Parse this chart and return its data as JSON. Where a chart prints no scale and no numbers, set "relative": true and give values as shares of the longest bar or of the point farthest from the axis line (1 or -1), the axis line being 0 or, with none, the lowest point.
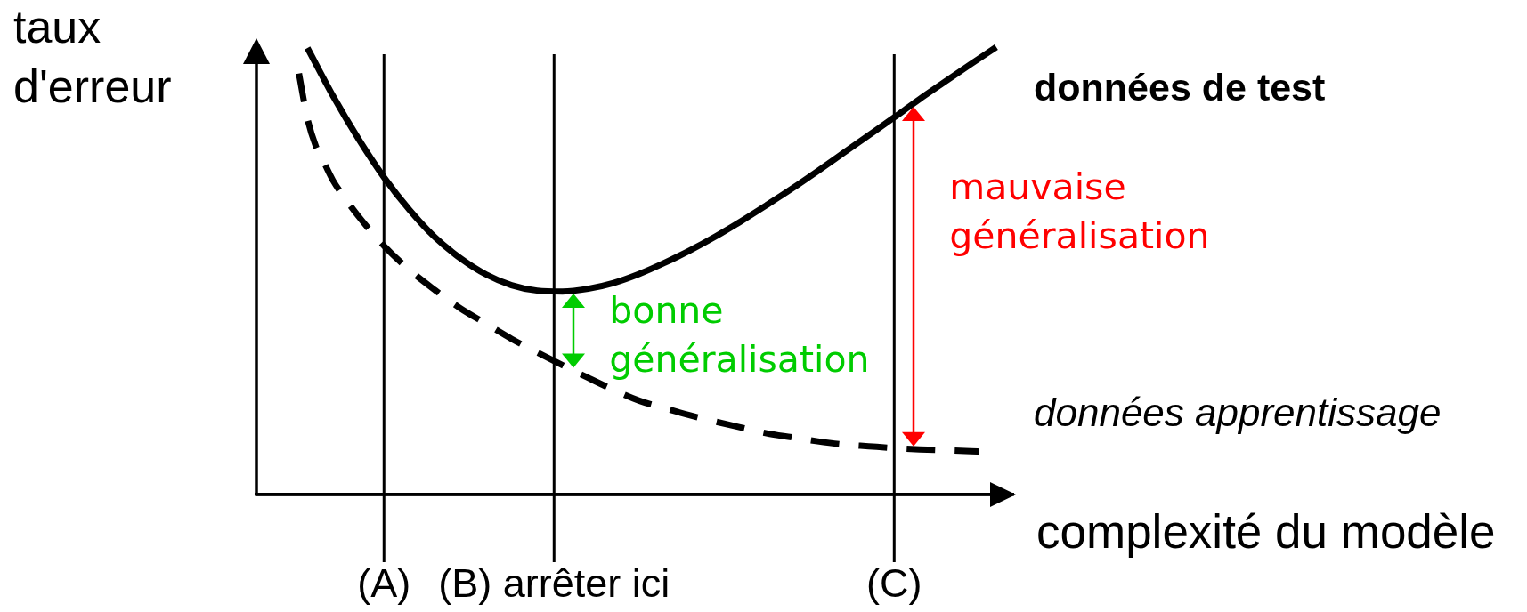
{
  "chart_data": {
    "type": "line",
    "relative": true,
    "xlabel": "complexité du modèle",
    "ylabel": "taux d'erreur",
    "categories": [
      null,
      null,
      null,
      null,
      null,
      null,
      null,
      null,
      null,
      null,
      null,
      null,
      null,
      null,
      null,
      "(A)",
      null,
      null,
      null,
      null,
      null,
      null,
      null,
      null,
      null,
      null,
      null,
      null,
      null,
      null,
      null,
      null,
      null,
      null,
      null,
      "(B) arrêter ici",
      null,
      null,
      null,
      null,
      null,
      null,
      null,
      null,
      null,
      null,
      null,
      null,
      null,
      null,
      null,
      null,
      null,
      null,
      null,
      null,
      null,
      null,
      null,
      null,
      null,
      null,
      null,
      null,
      null,
      null,
      null,
      null,
      null,
      null,
      null,
      null,
      null,
      null,
      null,
      "(C)",
      null,
      null,
      null,
      null,
      null,
      null,
      null,
      null,
      null,
      null,
      null,
      null,
      null,
      null
    ],
    "series": [
      {
        "name": "données de test",
        "color": "#000000",
        "line_style": "solid",
        "values": [
          null,
          null,
          null,
          null,
          null,
          null,
          0.998,
          null,
          null,
          0.891,
          null,
          null,
          0.795,
          null,
          null,
          0.709,
          null,
          null,
          0.636,
          null,
          null,
          0.575,
          null,
          null,
          0.528,
          null,
          null,
          0.492,
          null,
          null,
          0.468,
          null,
          null,
          0.456,
          null,
          null,
          0.454,
          null,
          null,
          0.46,
          null,
          null,
          0.473,
          null,
          null,
          0.493,
          null,
          null,
          0.518,
          null,
          null,
          0.546,
          null,
          null,
          0.577,
          null,
          null,
          0.611,
          null,
          null,
          0.647,
          null,
          null,
          0.684,
          null,
          null,
          0.723,
          null,
          null,
          0.763,
          null,
          null,
          0.803,
          null,
          null,
          0.843,
          null,
          null,
          0.884,
          null,
          null,
          0.923,
          null,
          null,
          0.962,
          null,
          null,
          1.0,
          null,
          null
        ]
      },
      {
        "name": "données apprentissage",
        "color": "#000000",
        "line_style": "dashed",
        "values": [
          null,
          null,
          null,
          null,
          null,
          0.941,
          0.84,
          0.778,
          0.74,
          0.702,
          0.673,
          null,
          0.622,
          null,
          null,
          0.556,
          null,
          null,
          0.502,
          null,
          null,
          0.457,
          null,
          null,
          0.416,
          null,
          null,
          0.382,
          null,
          null,
          0.348,
          null,
          null,
          0.318,
          null,
          null,
          0.289,
          null,
          null,
          0.261,
          null,
          null,
          0.234,
          null,
          null,
          0.21,
          null,
          null,
          0.193,
          null,
          null,
          0.177,
          null,
          null,
          0.163,
          null,
          null,
          0.15,
          null,
          null,
          0.137,
          null,
          null,
          0.128,
          null,
          null,
          0.119,
          null,
          null,
          0.112,
          null,
          null,
          0.108,
          null,
          null,
          0.104,
          null,
          null,
          0.101,
          null,
          null,
          0.099,
          null,
          null,
          0.097,
          0.096,
          null,
          null,
          null,
          null
        ]
      }
    ],
    "ref_lines": [
      {
        "axis": "x",
        "value": "(A)",
        "color": "#000000"
      },
      {
        "axis": "x",
        "value": "(B) arrêter ici",
        "color": "#000000"
      },
      {
        "axis": "x",
        "value": "(C)",
        "color": "#000000"
      }
    ],
    "annotations": [
      {
        "text": "bonne généralisation",
        "x": "(B) arrêter ici"
      },
      {
        "text": "mauvaise généralisation",
        "x": "(C)"
      }
    ]
  }
}
